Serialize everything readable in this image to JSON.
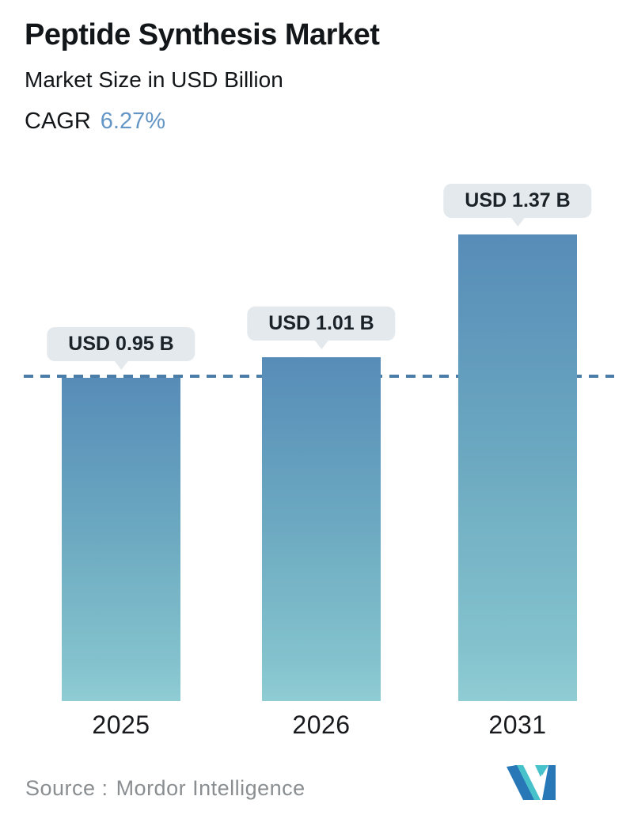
{
  "header": {
    "title": "Peptide Synthesis Market",
    "subtitle": "Market Size in USD Billion",
    "cagr_label": "CAGR",
    "cagr_value": "6.27%"
  },
  "chart_data": {
    "type": "bar",
    "title": "Peptide Synthesis Market",
    "ylabel": "Market Size in USD Billion",
    "categories": [
      "2025",
      "2026",
      "2031"
    ],
    "values": [
      0.95,
      1.01,
      1.37
    ],
    "bar_labels": [
      "USD 0.95 B",
      "USD 1.01 B",
      "USD 1.37 B"
    ],
    "cagr_percent": "6.27%",
    "reference_line": {
      "at_value": 0.95,
      "style": "dashed",
      "color": "#4a7da8"
    },
    "ylim": [
      0,
      1.55
    ],
    "grid": false,
    "legend": false,
    "bar_gradient": [
      "#578cb8",
      "#83c2cd"
    ]
  },
  "footer": {
    "source_label": "Source :",
    "source_value": "Mordor Intelligence",
    "logo_name": "mordor-intelligence-logo"
  },
  "colors": {
    "accent_blue": "#6496c5",
    "pill_bg": "#e3e9ed",
    "dashed_line": "#4a7da8",
    "text_dark": "#131619",
    "source_gray": "#8a8e91",
    "logo_blue": "#2878b8",
    "logo_teal": "#47c2ca"
  }
}
